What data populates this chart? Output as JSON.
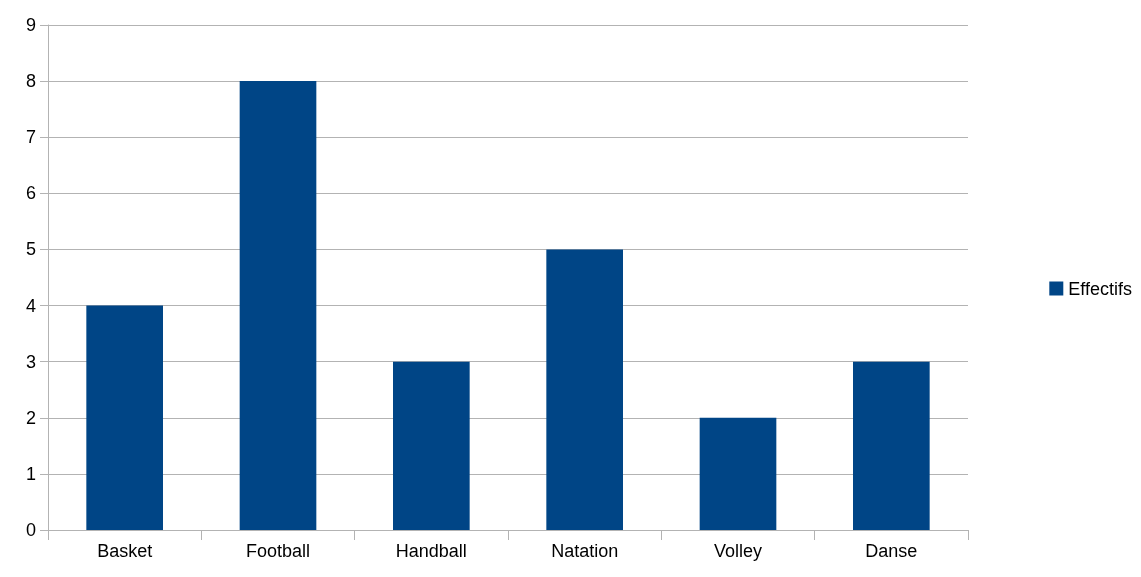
{
  "chart_data": {
    "type": "bar",
    "categories": [
      "Basket",
      "Football",
      "Handball",
      "Natation",
      "Volley",
      "Danse"
    ],
    "series": [
      {
        "name": "Effectifs",
        "color": "#004586",
        "values": [
          4,
          8,
          3,
          5,
          2,
          3
        ]
      }
    ],
    "ylim": [
      0,
      9
    ],
    "yticks": [
      0,
      1,
      2,
      3,
      4,
      5,
      6,
      7,
      8,
      9
    ],
    "grid": "y",
    "legend": "right"
  }
}
